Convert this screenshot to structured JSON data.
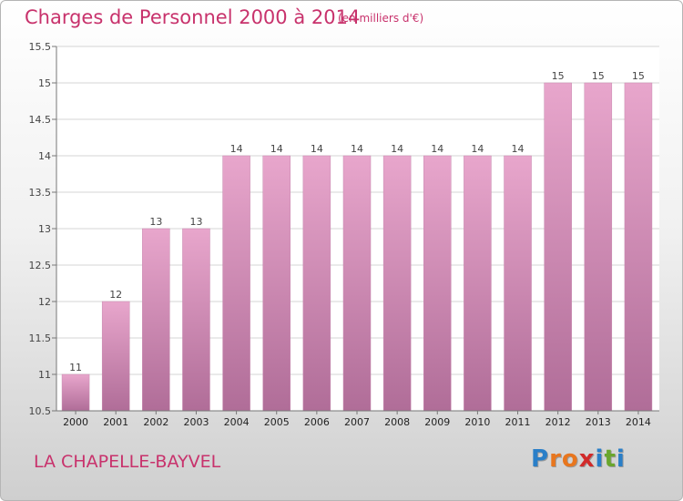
{
  "header": {
    "title": "Charges de Personnel 2000 à 2014",
    "unit": "(en milliers d'€)"
  },
  "footer": {
    "commune": "LA CHAPELLE-BAYVEL",
    "logo_letters": [
      "P",
      "r",
      "o",
      "x",
      "i",
      "t",
      "i"
    ]
  },
  "colors": {
    "bar_top": "#e8a6cc",
    "bar_bottom": "#b06d98",
    "title": "#c8326c",
    "logo": [
      "#2a7fc8",
      "#e8761e",
      "#e8761e",
      "#d12a2a",
      "#2a7fc8",
      "#6aa62c",
      "#2a7fc8"
    ]
  },
  "chart_data": {
    "type": "bar",
    "title": "Charges de Personnel 2000 à 2014",
    "subtitle": "(en milliers d'€)",
    "categories": [
      "2000",
      "2001",
      "2002",
      "2003",
      "2004",
      "2005",
      "2006",
      "2007",
      "2008",
      "2009",
      "2010",
      "2011",
      "2012",
      "2013",
      "2014"
    ],
    "values": [
      11,
      12,
      13,
      13,
      14,
      14,
      14,
      14,
      14,
      14,
      14,
      14,
      15,
      15,
      15
    ],
    "data_labels": [
      "11",
      "12",
      "13",
      "13",
      "14",
      "14",
      "14",
      "14",
      "14",
      "14",
      "14",
      "14",
      "15",
      "15",
      "15"
    ],
    "ylim": [
      10.5,
      15.5
    ],
    "yticks": [
      10.5,
      11,
      11.5,
      12,
      12.5,
      13,
      13.5,
      14,
      14.5,
      15,
      15.5
    ],
    "ytick_labels": [
      "10.5",
      "11",
      "11.5",
      "12",
      "12.5",
      "13",
      "13.5",
      "14",
      "14.5",
      "15",
      "15.5"
    ],
    "grid": true,
    "legend": "none"
  }
}
